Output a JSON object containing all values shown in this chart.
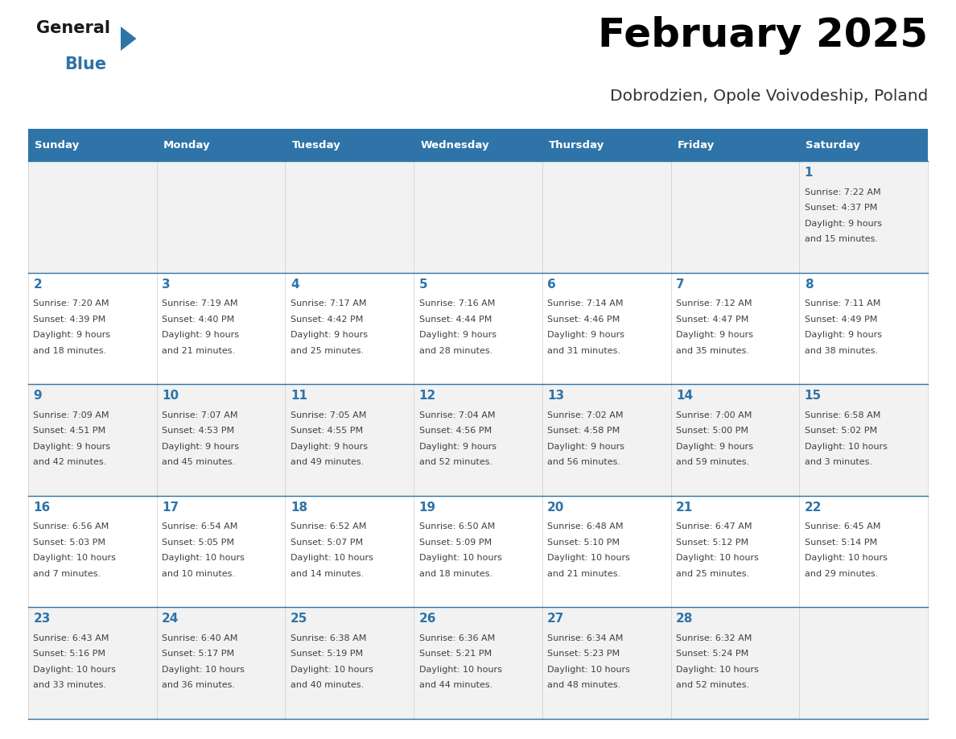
{
  "title": "February 2025",
  "subtitle": "Dobrodzien, Opole Voivodeship, Poland",
  "days_of_week": [
    "Sunday",
    "Monday",
    "Tuesday",
    "Wednesday",
    "Thursday",
    "Friday",
    "Saturday"
  ],
  "header_bg": "#2E74A8",
  "header_text": "#FFFFFF",
  "row_bg_odd": "#F2F2F2",
  "row_bg_even": "#FFFFFF",
  "cell_border": "#2E74A8",
  "day_number_color": "#2E74A8",
  "info_text_color": "#404040",
  "calendar_data": [
    [
      null,
      null,
      null,
      null,
      null,
      null,
      {
        "day": "1",
        "sunrise": "7:22 AM",
        "sunset": "4:37 PM",
        "daylight": "9 hours",
        "daylight2": "and 15 minutes."
      }
    ],
    [
      {
        "day": "2",
        "sunrise": "7:20 AM",
        "sunset": "4:39 PM",
        "daylight": "9 hours",
        "daylight2": "and 18 minutes."
      },
      {
        "day": "3",
        "sunrise": "7:19 AM",
        "sunset": "4:40 PM",
        "daylight": "9 hours",
        "daylight2": "and 21 minutes."
      },
      {
        "day": "4",
        "sunrise": "7:17 AM",
        "sunset": "4:42 PM",
        "daylight": "9 hours",
        "daylight2": "and 25 minutes."
      },
      {
        "day": "5",
        "sunrise": "7:16 AM",
        "sunset": "4:44 PM",
        "daylight": "9 hours",
        "daylight2": "and 28 minutes."
      },
      {
        "day": "6",
        "sunrise": "7:14 AM",
        "sunset": "4:46 PM",
        "daylight": "9 hours",
        "daylight2": "and 31 minutes."
      },
      {
        "day": "7",
        "sunrise": "7:12 AM",
        "sunset": "4:47 PM",
        "daylight": "9 hours",
        "daylight2": "and 35 minutes."
      },
      {
        "day": "8",
        "sunrise": "7:11 AM",
        "sunset": "4:49 PM",
        "daylight": "9 hours",
        "daylight2": "and 38 minutes."
      }
    ],
    [
      {
        "day": "9",
        "sunrise": "7:09 AM",
        "sunset": "4:51 PM",
        "daylight": "9 hours",
        "daylight2": "and 42 minutes."
      },
      {
        "day": "10",
        "sunrise": "7:07 AM",
        "sunset": "4:53 PM",
        "daylight": "9 hours",
        "daylight2": "and 45 minutes."
      },
      {
        "day": "11",
        "sunrise": "7:05 AM",
        "sunset": "4:55 PM",
        "daylight": "9 hours",
        "daylight2": "and 49 minutes."
      },
      {
        "day": "12",
        "sunrise": "7:04 AM",
        "sunset": "4:56 PM",
        "daylight": "9 hours",
        "daylight2": "and 52 minutes."
      },
      {
        "day": "13",
        "sunrise": "7:02 AM",
        "sunset": "4:58 PM",
        "daylight": "9 hours",
        "daylight2": "and 56 minutes."
      },
      {
        "day": "14",
        "sunrise": "7:00 AM",
        "sunset": "5:00 PM",
        "daylight": "9 hours",
        "daylight2": "and 59 minutes."
      },
      {
        "day": "15",
        "sunrise": "6:58 AM",
        "sunset": "5:02 PM",
        "daylight": "10 hours",
        "daylight2": "and 3 minutes."
      }
    ],
    [
      {
        "day": "16",
        "sunrise": "6:56 AM",
        "sunset": "5:03 PM",
        "daylight": "10 hours",
        "daylight2": "and 7 minutes."
      },
      {
        "day": "17",
        "sunrise": "6:54 AM",
        "sunset": "5:05 PM",
        "daylight": "10 hours",
        "daylight2": "and 10 minutes."
      },
      {
        "day": "18",
        "sunrise": "6:52 AM",
        "sunset": "5:07 PM",
        "daylight": "10 hours",
        "daylight2": "and 14 minutes."
      },
      {
        "day": "19",
        "sunrise": "6:50 AM",
        "sunset": "5:09 PM",
        "daylight": "10 hours",
        "daylight2": "and 18 minutes."
      },
      {
        "day": "20",
        "sunrise": "6:48 AM",
        "sunset": "5:10 PM",
        "daylight": "10 hours",
        "daylight2": "and 21 minutes."
      },
      {
        "day": "21",
        "sunrise": "6:47 AM",
        "sunset": "5:12 PM",
        "daylight": "10 hours",
        "daylight2": "and 25 minutes."
      },
      {
        "day": "22",
        "sunrise": "6:45 AM",
        "sunset": "5:14 PM",
        "daylight": "10 hours",
        "daylight2": "and 29 minutes."
      }
    ],
    [
      {
        "day": "23",
        "sunrise": "6:43 AM",
        "sunset": "5:16 PM",
        "daylight": "10 hours",
        "daylight2": "and 33 minutes."
      },
      {
        "day": "24",
        "sunrise": "6:40 AM",
        "sunset": "5:17 PM",
        "daylight": "10 hours",
        "daylight2": "and 36 minutes."
      },
      {
        "day": "25",
        "sunrise": "6:38 AM",
        "sunset": "5:19 PM",
        "daylight": "10 hours",
        "daylight2": "and 40 minutes."
      },
      {
        "day": "26",
        "sunrise": "6:36 AM",
        "sunset": "5:21 PM",
        "daylight": "10 hours",
        "daylight2": "and 44 minutes."
      },
      {
        "day": "27",
        "sunrise": "6:34 AM",
        "sunset": "5:23 PM",
        "daylight": "10 hours",
        "daylight2": "and 48 minutes."
      },
      {
        "day": "28",
        "sunrise": "6:32 AM",
        "sunset": "5:24 PM",
        "daylight": "10 hours",
        "daylight2": "and 52 minutes."
      },
      null
    ]
  ]
}
